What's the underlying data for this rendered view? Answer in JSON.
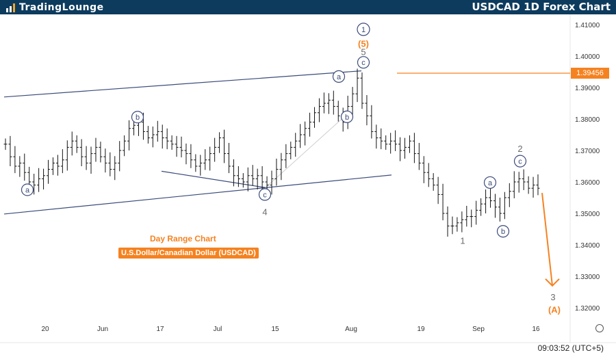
{
  "header": {
    "logo_text_1": "TradingLounge",
    "title": "USDCAD 1D Forex Chart"
  },
  "captions": {
    "line1": "Day Range Chart",
    "line2": "U.S.Dollar/Canadian Dollar (USDCAD)"
  },
  "price_tag": "1.39456",
  "clock": "09:03:52 (UTC+5)",
  "colors": {
    "header_bg": "#0d3b5e",
    "accent": "#f58220",
    "wave_blue": "#3b4a7a"
  },
  "chart_data": {
    "type": "ohlc",
    "y_ticks": [
      "1.41000",
      "1.40000",
      "1.39000",
      "1.38000",
      "1.37000",
      "1.36000",
      "1.35000",
      "1.34000",
      "1.33000",
      "1.32000"
    ],
    "y_tick_values": [
      1.41,
      1.4,
      1.39,
      1.38,
      1.37,
      1.36,
      1.35,
      1.34,
      1.33,
      1.32
    ],
    "x_ticks": [
      "20",
      "Jun",
      "17",
      "Jul",
      "15",
      "Aug",
      "19",
      "Sep",
      "16"
    ],
    "horizontal_level": 1.39456,
    "price_series": [
      1.372,
      1.368,
      1.365,
      1.366,
      1.363,
      1.36,
      1.359,
      1.361,
      1.362,
      1.364,
      1.366,
      1.365,
      1.367,
      1.371,
      1.373,
      1.371,
      1.368,
      1.366,
      1.369,
      1.371,
      1.368,
      1.366,
      1.364,
      1.366,
      1.37,
      1.373,
      1.377,
      1.378,
      1.379,
      1.376,
      1.374,
      1.375,
      1.376,
      1.374,
      1.373,
      1.372,
      1.371,
      1.37,
      1.369,
      1.367,
      1.365,
      1.366,
      1.367,
      1.369,
      1.371,
      1.374,
      1.369,
      1.365,
      1.362,
      1.361,
      1.36,
      1.362,
      1.361,
      1.362,
      1.36,
      1.359,
      1.361,
      1.364,
      1.367,
      1.369,
      1.371,
      1.373,
      1.375,
      1.377,
      1.379,
      1.382,
      1.384,
      1.385,
      1.386,
      1.384,
      1.381,
      1.379,
      1.384,
      1.388,
      1.393,
      1.385,
      1.381,
      1.376,
      1.374,
      1.373,
      1.372,
      1.373,
      1.372,
      1.37,
      1.371,
      1.373,
      1.369,
      1.366,
      1.363,
      1.361,
      1.359,
      1.356,
      1.35,
      1.346,
      1.346,
      1.347,
      1.348,
      1.349,
      1.349,
      1.351,
      1.353,
      1.355,
      1.354,
      1.352,
      1.35,
      1.355,
      1.357,
      1.36,
      1.361,
      1.36,
      1.358,
      1.359,
      1.358
    ],
    "wave_labels": [
      {
        "text": "1",
        "style": "circle-top",
        "price": 1.4085
      },
      {
        "text": "(5)",
        "style": "orange",
        "price": 1.404
      },
      {
        "text": "5",
        "style": "plain",
        "price": 1.4014
      },
      {
        "text": "c",
        "style": "circle",
        "price": 1.398
      },
      {
        "text": "a",
        "style": "circle",
        "price": 1.3935
      },
      {
        "text": "b",
        "style": "circle",
        "price": 1.3806
      },
      {
        "text": "b",
        "style": "circle",
        "price": 1.3807
      },
      {
        "text": "a",
        "style": "circle",
        "price": 1.3575
      },
      {
        "text": "c",
        "style": "circle",
        "price": 1.356
      },
      {
        "text": "4",
        "style": "plain",
        "price": 1.3505
      },
      {
        "text": "1",
        "style": "plain",
        "price": 1.3414
      },
      {
        "text": "a",
        "style": "circle",
        "price": 1.3598
      },
      {
        "text": "b",
        "style": "circle",
        "price": 1.3443
      },
      {
        "text": "2",
        "style": "plain",
        "price": 1.3707
      },
      {
        "text": "c",
        "style": "circle",
        "price": 1.3666
      },
      {
        "text": "3",
        "style": "plain",
        "price": 1.3235
      },
      {
        "text": "(A)",
        "style": "orange",
        "price": 1.3195
      }
    ],
    "projection": {
      "from": 1.3565,
      "to": 1.327
    }
  }
}
